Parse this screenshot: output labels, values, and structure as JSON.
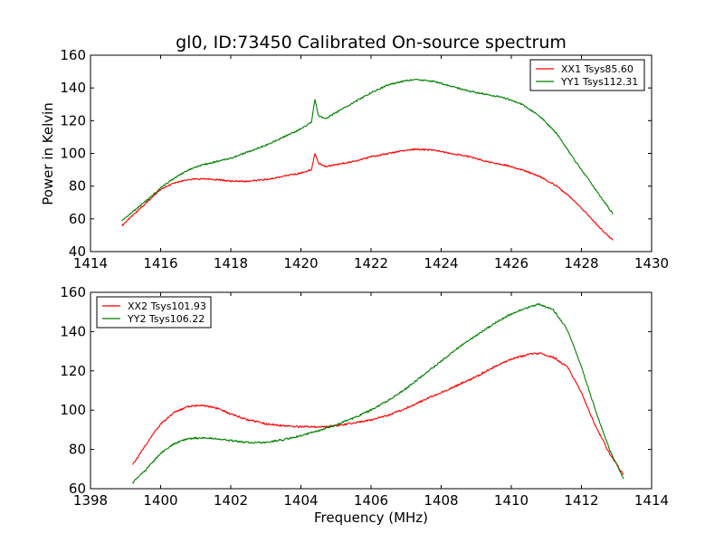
{
  "chart_data": [
    {
      "type": "line",
      "title": "gl0, ID:73450 Calibrated On-source spectrum",
      "xlabel": "",
      "ylabel": "Power in Kelvin",
      "xlim": [
        1414,
        1430
      ],
      "ylim": [
        40,
        160
      ],
      "xticks": [
        "1414",
        "1416",
        "1418",
        "1420",
        "1422",
        "1424",
        "1426",
        "1428",
        "1430"
      ],
      "yticks": [
        "40",
        "60",
        "80",
        "100",
        "120",
        "140",
        "160"
      ],
      "legend_position": "top-right",
      "series": [
        {
          "name": "XX1 Tsys85.60",
          "color": "#ff0000",
          "x": [
            1414.9,
            1415.3,
            1415.7,
            1416.0,
            1416.4,
            1416.8,
            1417.2,
            1417.6,
            1418.0,
            1418.5,
            1419.0,
            1419.5,
            1420.0,
            1420.3,
            1420.4,
            1420.5,
            1420.7,
            1421.0,
            1421.5,
            1422.0,
            1422.5,
            1423.0,
            1423.3,
            1423.8,
            1424.3,
            1424.8,
            1425.3,
            1425.8,
            1426.3,
            1426.8,
            1427.3,
            1427.8,
            1428.2,
            1428.6,
            1428.9
          ],
          "y": [
            56,
            64,
            72,
            78,
            82,
            84,
            84.5,
            84,
            83,
            83,
            84,
            86,
            88,
            90,
            100,
            94,
            92,
            93,
            95,
            98,
            100,
            102,
            102.5,
            102,
            100,
            98,
            95,
            93,
            90,
            86,
            80,
            71,
            62,
            53,
            47
          ]
        },
        {
          "name": "YY1 Tsys112.31",
          "color": "#008000",
          "x": [
            1414.9,
            1415.3,
            1415.7,
            1416.0,
            1416.4,
            1416.8,
            1417.2,
            1417.6,
            1418.0,
            1418.5,
            1419.0,
            1419.5,
            1420.0,
            1420.3,
            1420.4,
            1420.5,
            1420.7,
            1421.0,
            1421.5,
            1422.0,
            1422.5,
            1423.0,
            1423.3,
            1423.8,
            1424.3,
            1424.8,
            1425.3,
            1425.8,
            1426.3,
            1426.8,
            1427.3,
            1427.8,
            1428.2,
            1428.6,
            1428.9
          ],
          "y": [
            59,
            66,
            73,
            79,
            85,
            90,
            93,
            95,
            97,
            101,
            105,
            110,
            115,
            119,
            133,
            123,
            121,
            125,
            131,
            137,
            142,
            144.5,
            145,
            144,
            141,
            138,
            136,
            134,
            130,
            123,
            112,
            96,
            84,
            72,
            63
          ]
        }
      ]
    },
    {
      "type": "line",
      "title": "",
      "xlabel": "Frequency (MHz)",
      "ylabel": "",
      "xlim": [
        1398,
        1414
      ],
      "ylim": [
        60,
        160
      ],
      "xticks": [
        "1398",
        "1400",
        "1402",
        "1404",
        "1406",
        "1408",
        "1410",
        "1412",
        "1414"
      ],
      "yticks": [
        "60",
        "80",
        "100",
        "120",
        "140",
        "160"
      ],
      "legend_position": "top-left",
      "series": [
        {
          "name": "XX2 Tsys101.93",
          "color": "#ff0000",
          "x": [
            1399.2,
            1399.6,
            1400.0,
            1400.4,
            1400.8,
            1401.2,
            1401.6,
            1402.0,
            1402.5,
            1403.0,
            1403.5,
            1404.0,
            1404.5,
            1405.0,
            1405.5,
            1406.0,
            1406.5,
            1407.0,
            1407.5,
            1408.0,
            1408.5,
            1409.0,
            1409.5,
            1410.0,
            1410.5,
            1410.8,
            1411.2,
            1411.6,
            1412.0,
            1412.4,
            1412.8,
            1413.2
          ],
          "y": [
            72,
            83,
            93,
            99,
            102,
            102.5,
            101,
            98,
            95,
            93,
            92,
            91.5,
            91.5,
            92,
            93.5,
            95,
            97.5,
            101,
            105,
            109,
            113,
            117,
            122,
            126,
            128.5,
            129,
            127,
            122,
            109,
            92,
            78,
            67
          ]
        },
        {
          "name": "YY2 Tsys106.22",
          "color": "#008000",
          "x": [
            1399.2,
            1399.6,
            1400.0,
            1400.4,
            1400.8,
            1401.2,
            1401.6,
            1402.0,
            1402.5,
            1403.0,
            1403.5,
            1404.0,
            1404.5,
            1405.0,
            1405.5,
            1406.0,
            1406.5,
            1407.0,
            1407.5,
            1408.0,
            1408.5,
            1409.0,
            1409.5,
            1410.0,
            1410.5,
            1410.8,
            1411.2,
            1411.6,
            1412.0,
            1412.4,
            1412.8,
            1413.2
          ],
          "y": [
            63,
            70,
            78,
            83,
            85.5,
            86,
            85.5,
            84.5,
            83.5,
            83.5,
            85,
            87,
            89.5,
            92.5,
            96,
            100,
            105,
            111,
            118,
            125,
            132,
            138,
            144,
            149,
            152.5,
            154,
            151,
            141,
            122,
            100,
            80,
            65
          ]
        }
      ]
    }
  ]
}
